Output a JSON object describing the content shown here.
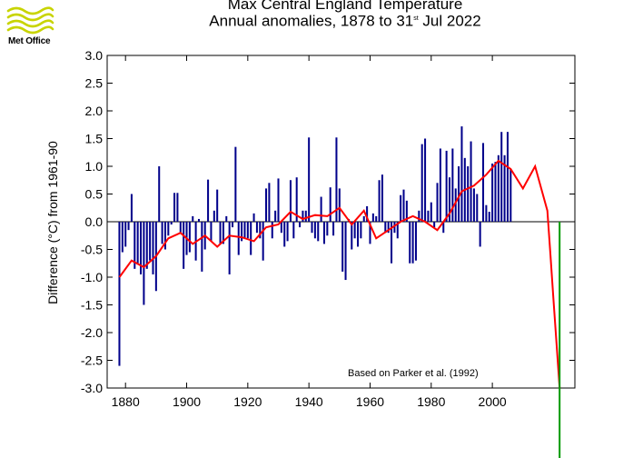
{
  "brand": {
    "logo_text": "Met Office",
    "logo_color": "#c8d400"
  },
  "chart_data": {
    "type": "bar",
    "title_line1": "Max Central England Temperature",
    "title_line2_prefix": "Annual anomalies, 1878 to 31",
    "title_line2_sup": "st",
    "title_line2_suffix": " Jul 2022",
    "ylabel": "Difference (°C) from 1961-90",
    "credit": "Based on Parker et al. (1992)",
    "xlim": [
      1874,
      2027
    ],
    "ylim": [
      -3.0,
      3.0
    ],
    "x_ticks": [
      1880,
      1900,
      1920,
      1940,
      1960,
      1980,
      2000
    ],
    "y_ticks": [
      "3.0",
      "2.5",
      "2.0",
      "1.5",
      "1.0",
      "0.5",
      "0.0",
      "-0.5",
      "-1.0",
      "-1.5",
      "-2.0",
      "-2.5",
      "-3.0"
    ],
    "bar_color": "#00008b",
    "smooth_color": "#ff0000",
    "current_year_color": "#009900",
    "series": [
      {
        "name": "Annual anomaly",
        "x_start": 1878,
        "values": [
          -2.6,
          -0.55,
          -0.45,
          -0.15,
          0.5,
          -0.85,
          -0.75,
          -0.95,
          -1.5,
          -0.85,
          -0.7,
          -0.95,
          -1.25,
          1.0,
          -0.4,
          -0.5,
          -0.25,
          -0.05,
          0.52,
          0.52,
          -0.2,
          -0.85,
          -0.6,
          -0.55,
          0.1,
          -0.7,
          0.05,
          -0.9,
          -0.5,
          0.76,
          -0.35,
          0.2,
          0.58,
          -0.4,
          -0.4,
          0.1,
          -0.95,
          -0.1,
          1.35,
          -0.6,
          -0.35,
          -0.3,
          -0.3,
          -0.6,
          0.15,
          -0.2,
          -0.3,
          -0.7,
          0.6,
          0.7,
          -0.3,
          0.2,
          0.78,
          -0.2,
          -0.45,
          -0.35,
          0.75,
          -0.3,
          0.8,
          -0.1,
          0.2,
          0.2,
          1.52,
          -0.2,
          -0.3,
          -0.35,
          0.45,
          -0.4,
          -0.25,
          0.62,
          -0.25,
          1.52,
          0.6,
          -0.9,
          -1.05,
          0.05,
          -0.5,
          -0.3,
          -0.45,
          -0.3,
          0.1,
          0.28,
          -0.4,
          0.15,
          0.1,
          0.75,
          0.85,
          -0.2,
          -0.2,
          -0.75,
          -0.2,
          -0.3,
          0.48,
          0.58,
          0.38,
          -0.75,
          -0.75,
          -0.7,
          0.2,
          1.4,
          1.5,
          0.2,
          0.35,
          -0.1,
          0.7,
          1.32,
          -0.2,
          1.28,
          0.8,
          1.32,
          0.6,
          1.0,
          1.72,
          1.15,
          1.0,
          1.45,
          0.6,
          0.5,
          -0.45,
          1.42,
          0.3,
          0.18,
          1.05,
          1.08,
          1.2,
          1.62,
          1.2,
          1.62,
          0.95
        ]
      },
      {
        "name": "Smoothed",
        "x": [
          1878,
          1882,
          1886,
          1890,
          1894,
          1898,
          1902,
          1906,
          1910,
          1914,
          1918,
          1922,
          1926,
          1930,
          1934,
          1938,
          1942,
          1946,
          1950,
          1954,
          1958,
          1962,
          1966,
          1970,
          1974,
          1978,
          1982,
          1986,
          1990,
          1994,
          1998,
          2002,
          2006,
          2010,
          2014,
          2018,
          2019,
          2020,
          2021,
          2022
        ],
        "y": [
          -1.0,
          -0.7,
          -0.82,
          -0.62,
          -0.3,
          -0.2,
          -0.4,
          -0.25,
          -0.45,
          -0.25,
          -0.28,
          -0.35,
          -0.1,
          -0.05,
          0.18,
          0.05,
          0.12,
          0.1,
          0.25,
          -0.05,
          0.2,
          -0.3,
          -0.15,
          0.0,
          0.1,
          0.0,
          -0.15,
          0.15,
          0.55,
          0.65,
          0.85,
          1.1,
          0.95,
          0.6,
          1.0,
          0.2,
          -0.6,
          -1.4,
          -2.2,
          -3.0
        ]
      }
    ],
    "current_year_marker": {
      "x": 2022
    }
  }
}
